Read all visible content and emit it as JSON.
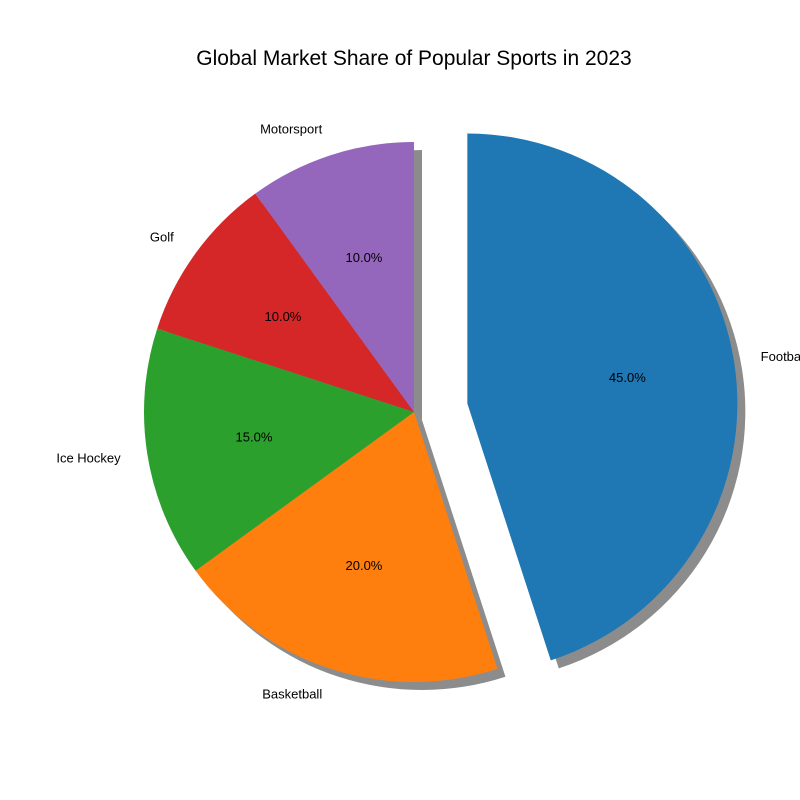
{
  "chart_data": {
    "type": "pie",
    "title": "Global Market Share of Popular Sports in 2023",
    "categories": [
      "Football",
      "Basketball",
      "Ice Hockey",
      "Golf",
      "Motorsport"
    ],
    "values": [
      45,
      20,
      15,
      10,
      10
    ],
    "percent_labels": [
      "45.0%",
      "20.0%",
      "15.0%",
      "10.0%",
      "10.0%"
    ],
    "colors": [
      "#1f77b4",
      "#ff7f0e",
      "#2ca02c",
      "#d62728",
      "#9467bd"
    ],
    "start_angle_deg": 90,
    "direction": "clockwise",
    "explode": [
      0.2,
      0,
      0,
      0,
      0
    ],
    "shadow": true,
    "legend": "none"
  }
}
